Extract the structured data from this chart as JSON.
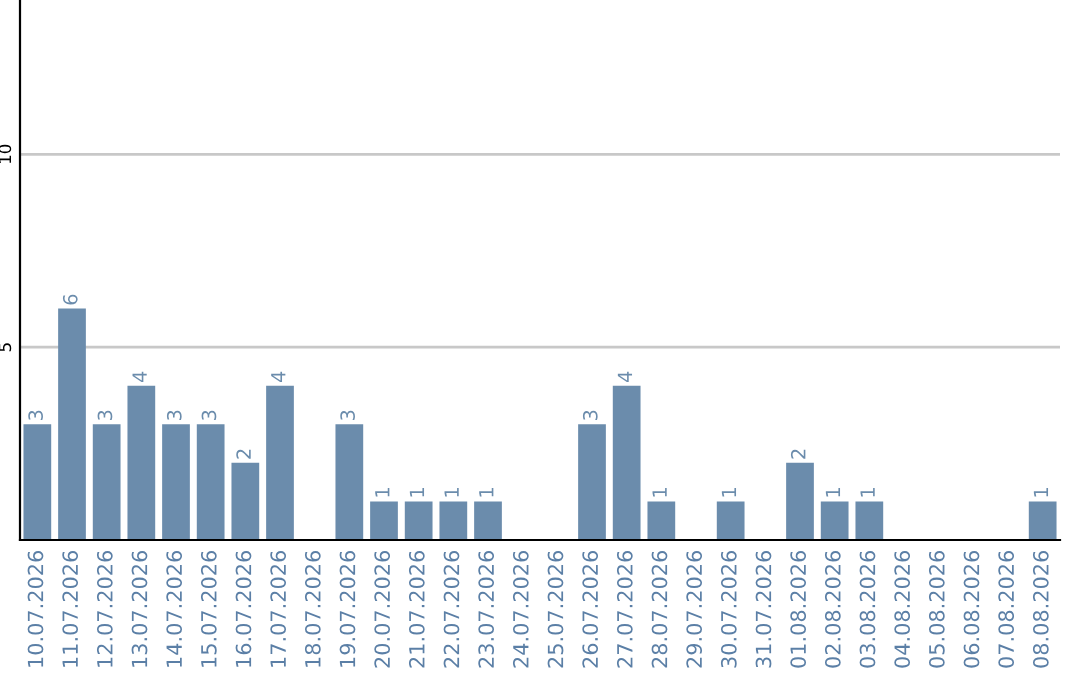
{
  "chart_data": {
    "type": "bar",
    "categories": [
      "10.07.2026",
      "11.07.2026",
      "12.07.2026",
      "13.07.2026",
      "14.07.2026",
      "15.07.2026",
      "16.07.2026",
      "17.07.2026",
      "18.07.2026",
      "19.07.2026",
      "20.07.2026",
      "21.07.2026",
      "22.07.2026",
      "23.07.2026",
      "24.07.2026",
      "25.07.2026",
      "26.07.2026",
      "27.07.2026",
      "28.07.2026",
      "29.07.2026",
      "30.07.2026",
      "31.07.2026",
      "01.08.2026",
      "02.08.2026",
      "03.08.2026",
      "04.08.2026",
      "05.08.2026",
      "06.08.2026",
      "07.08.2026",
      "08.08.2026"
    ],
    "values": [
      3,
      6,
      3,
      4,
      3,
      3,
      2,
      4,
      null,
      3,
      1,
      1,
      1,
      1,
      null,
      null,
      3,
      4,
      1,
      null,
      1,
      null,
      2,
      1,
      1,
      null,
      null,
      null,
      null,
      1
    ],
    "color": "#6b8cac",
    "ylim": [
      0,
      14
    ],
    "yticks": [
      5,
      10
    ],
    "grid": "y",
    "data_labels": true
  }
}
